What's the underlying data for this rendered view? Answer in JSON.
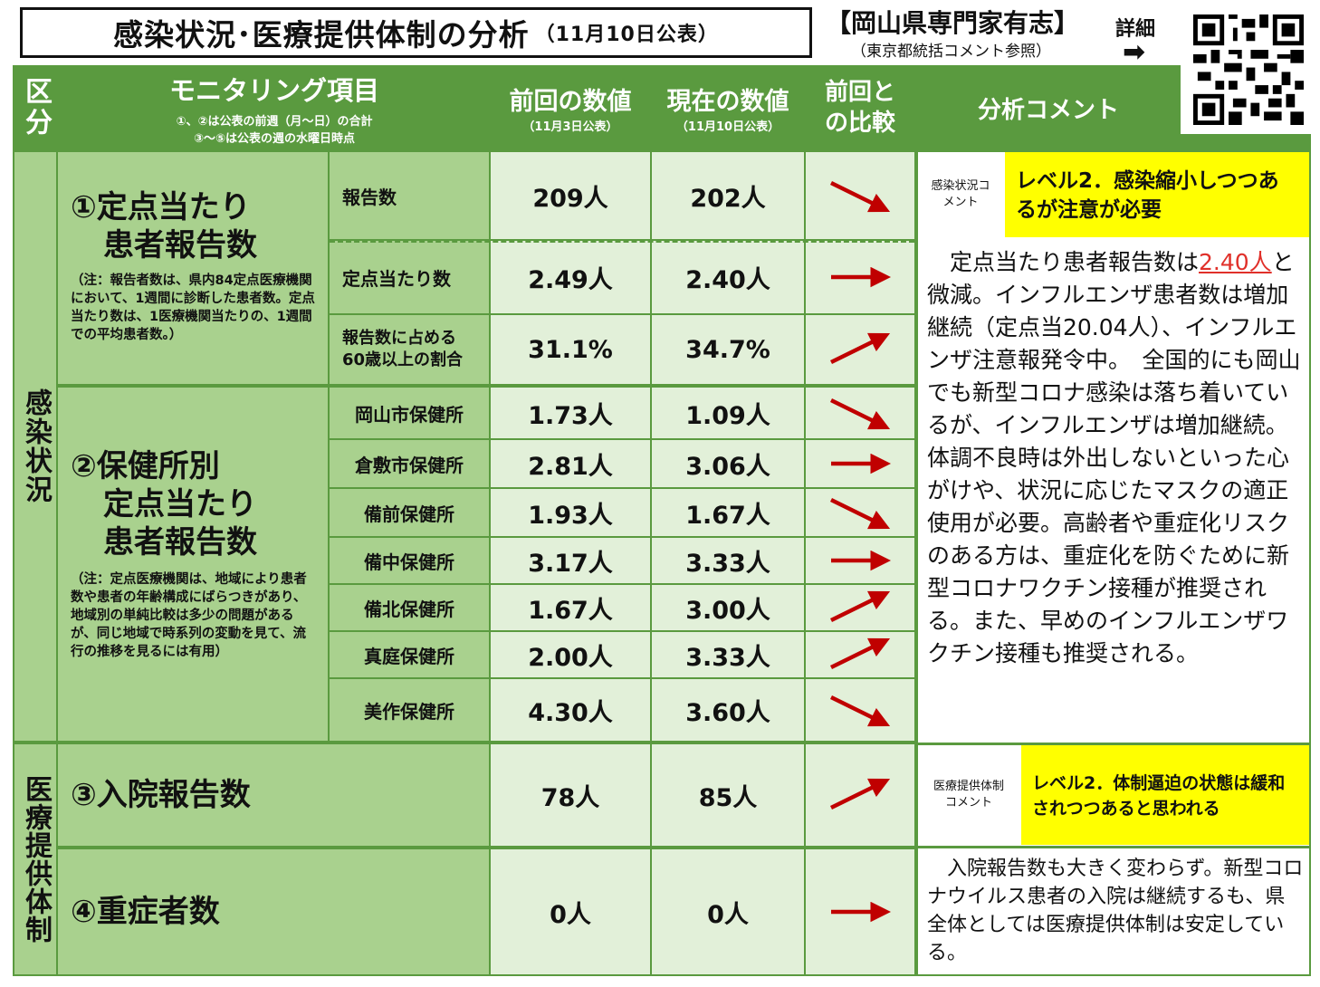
{
  "header": {
    "title": "感染状況･医療提供体制の分析",
    "title_date": "（11月10日公表）",
    "expert_title": "【岡山県専門家有志】",
    "expert_sub": "（東京都統括コメント参照）",
    "detail_label": "詳細"
  },
  "columns": {
    "category": "区分",
    "item_title": "モニタリング項目",
    "item_note1": "①、②は公表の前週（月～日）の合計",
    "item_note2": "③～⑤は公表の週の水曜日時点",
    "prev_title": "前回の数値",
    "prev_date": "（11月3日公表）",
    "curr_title": "現在の数値",
    "curr_date": "（11月10日公表）",
    "compare": "前回との比較",
    "comment": "分析コメント"
  },
  "sections": {
    "infection": "感染状況",
    "medical": "医療提供体制"
  },
  "item1": {
    "title_line1": "①定点当たり",
    "title_line2": "患者報告数",
    "note": "（注：報告者数は、県内84定点医療機関において、1週間に診断した患者数。定点当たり数は、1医療機関当たりの、1週間での平均患者数。）",
    "rows": [
      {
        "label": "報告数",
        "prev": "209人",
        "curr": "202人",
        "trend": "down"
      },
      {
        "label": "定点当たり数",
        "prev": "2.49人",
        "curr": "2.40人",
        "trend": "flat"
      },
      {
        "label": "報告数に占める60歳以上の割合",
        "prev": "31.1%",
        "curr": "34.7%",
        "trend": "up"
      }
    ]
  },
  "item2": {
    "title_line1": "②保健所別",
    "title_line2": "定点当たり",
    "title_line3": "患者報告数",
    "note": "（注：定点医療機関は、地域により患者数や患者の年齢構成にばらつきがあり、地域別の単純比較は多少の問題があるが、同じ地域で時系列の変動を見て、流行の推移を見るには有用）",
    "rows": [
      {
        "label": "岡山市保健所",
        "prev": "1.73人",
        "curr": "1.09人",
        "trend": "down"
      },
      {
        "label": "倉敷市保健所",
        "prev": "2.81人",
        "curr": "3.06人",
        "trend": "flat"
      },
      {
        "label": "備前保健所",
        "prev": "1.93人",
        "curr": "1.67人",
        "trend": "down"
      },
      {
        "label": "備中保健所",
        "prev": "3.17人",
        "curr": "3.33人",
        "trend": "flat"
      },
      {
        "label": "備北保健所",
        "prev": "1.67人",
        "curr": "3.00人",
        "trend": "up"
      },
      {
        "label": "真庭保健所",
        "prev": "2.00人",
        "curr": "3.33人",
        "trend": "up"
      },
      {
        "label": "美作保健所",
        "prev": "4.30人",
        "curr": "3.60人",
        "trend": "down"
      }
    ]
  },
  "item3": {
    "title": "③入院報告数",
    "prev": "78人",
    "curr": "85人",
    "trend": "up"
  },
  "item4": {
    "title": "④重症者数",
    "prev": "0人",
    "curr": "0人",
    "trend": "flat"
  },
  "infection_comment": {
    "label": "感染状況コメント",
    "level": "レベル2．感染縮小しつつあるが注意が必要",
    "text_before": "　定点当たり患者報告数は",
    "text_highlight": "2.40人",
    "text_after": "と微減。インフルエンザ患者数は増加継続（定点当20.04人）、インフルエンザ注意報発令中。　全国的にも岡山でも新型コロナ感染は落ち着いているが、インフルエンザは増加継続。体調不良時は外出しないといった心がけや、状況に応じたマスクの適正使用が必要。高齢者や重症化リスクのある方は、重症化を防ぐために新型コロナワクチン接種が推奨される。また、早めのインフルエンザワクチン接種も推奨される。"
  },
  "medical_comment": {
    "label": "医療提供体制コメント",
    "level": "レベル2．体制逼迫の状態は緩和されつつあると思われる",
    "text": "　入院報告数も大きく変わらず。新型コロナウイルス患者の入院は継続するも、県全体としては医療提供体制は安定している。"
  },
  "colors": {
    "header_green": "#5a9a3f",
    "light_green": "#a9d18e",
    "value_bg": "#e2f0d9",
    "arrow_red": "#c00000",
    "level_yellow": "#ffff00"
  }
}
